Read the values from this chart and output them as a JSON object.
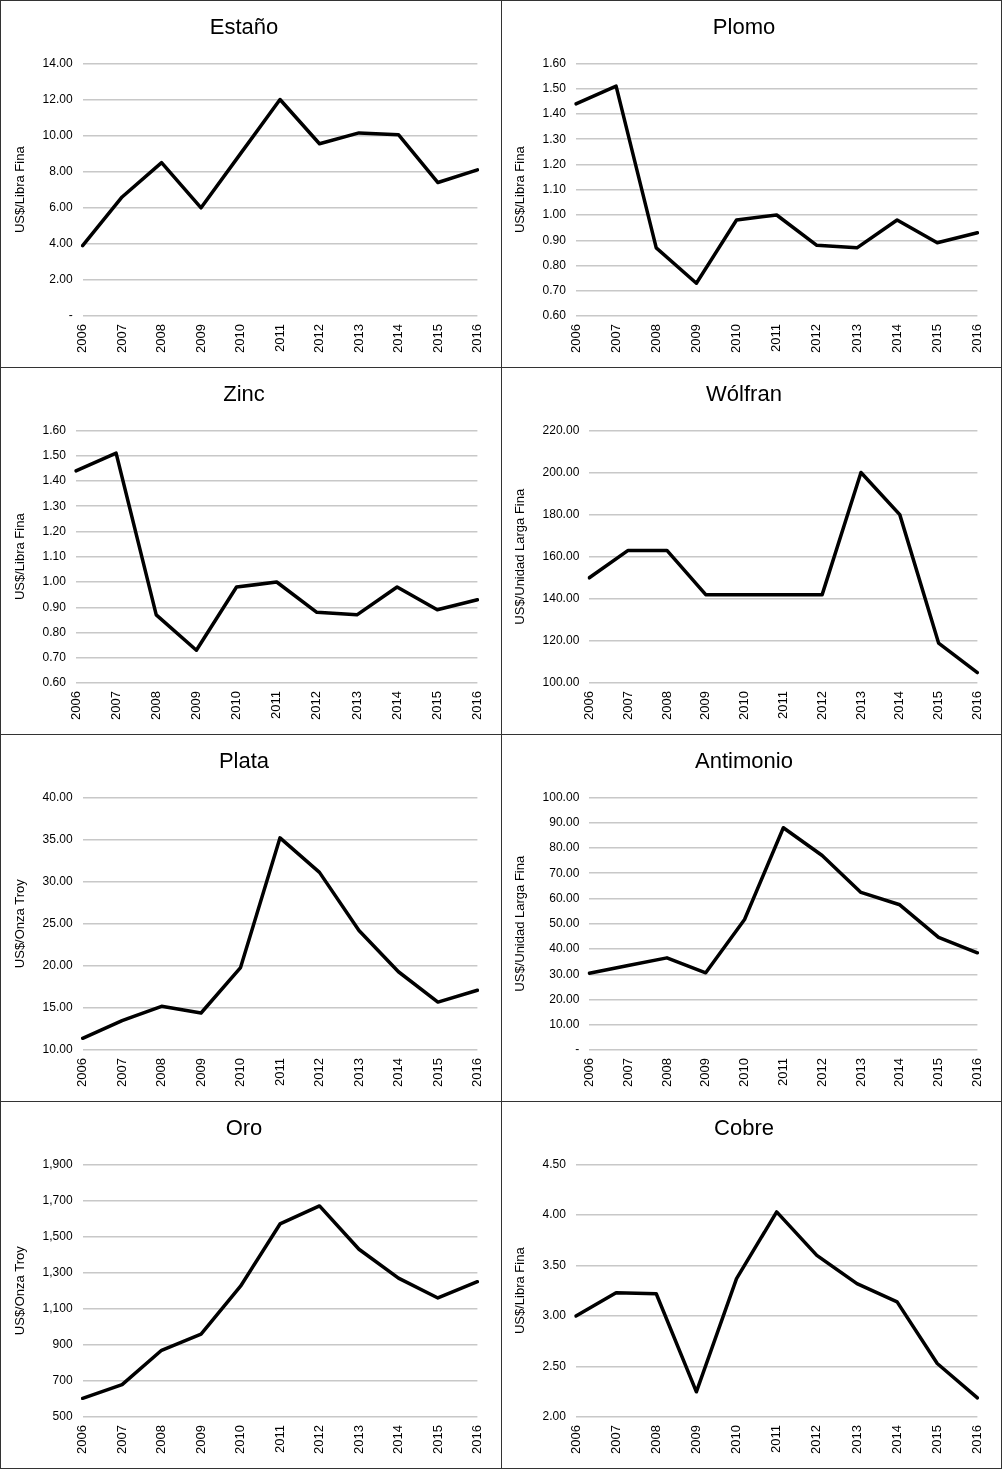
{
  "chart_data": [
    {
      "type": "line",
      "title": "Estaño",
      "ylabel": "US$/Libra Fina",
      "categories": [
        "2006",
        "2007",
        "2008",
        "2009",
        "2010",
        "2011",
        "2012",
        "2013",
        "2014",
        "2015",
        "2016"
      ],
      "values": [
        3.9,
        6.6,
        8.5,
        6.0,
        9.0,
        12.0,
        9.55,
        10.15,
        10.05,
        7.4,
        8.1
      ],
      "color": "#000000",
      "ylim": [
        0,
        14
      ],
      "yticks": [
        {
          "value": 0,
          "label": "-"
        },
        {
          "value": 2,
          "label": "2.00"
        },
        {
          "value": 4,
          "label": "4.00"
        },
        {
          "value": 6,
          "label": "6.00"
        },
        {
          "value": 8,
          "label": "8.00"
        },
        {
          "value": 10,
          "label": "10.00"
        },
        {
          "value": 12,
          "label": "12.00"
        },
        {
          "value": 14,
          "label": "14.00"
        }
      ],
      "grid": "y",
      "marker": "none",
      "line_style": "solid"
    },
    {
      "type": "line",
      "title": "Plomo",
      "ylabel": "US$/Libra Fina",
      "categories": [
        "2006",
        "2007",
        "2008",
        "2009",
        "2010",
        "2011",
        "2012",
        "2013",
        "2014",
        "2015",
        "2016"
      ],
      "values": [
        1.44,
        1.51,
        0.87,
        0.73,
        0.98,
        1.0,
        0.88,
        0.87,
        0.98,
        0.89,
        0.93
      ],
      "color": "#000000",
      "ylim": [
        0.6,
        1.6
      ],
      "yticks": [
        {
          "value": 0.6,
          "label": "0.60"
        },
        {
          "value": 0.7,
          "label": "0.70"
        },
        {
          "value": 0.8,
          "label": "0.80"
        },
        {
          "value": 0.9,
          "label": "0.90"
        },
        {
          "value": 1.0,
          "label": "1.00"
        },
        {
          "value": 1.1,
          "label": "1.10"
        },
        {
          "value": 1.2,
          "label": "1.20"
        },
        {
          "value": 1.3,
          "label": "1.30"
        },
        {
          "value": 1.4,
          "label": "1.40"
        },
        {
          "value": 1.5,
          "label": "1.50"
        },
        {
          "value": 1.6,
          "label": "1.60"
        }
      ],
      "grid": "y",
      "marker": "none",
      "line_style": "solid"
    },
    {
      "type": "line",
      "title": "Zinc",
      "ylabel": "US$/Libra Fina",
      "categories": [
        "2006",
        "2007",
        "2008",
        "2009",
        "2010",
        "2011",
        "2012",
        "2013",
        "2014",
        "2015",
        "2016"
      ],
      "values": [
        1.44,
        1.51,
        0.87,
        0.73,
        0.98,
        1.0,
        0.88,
        0.87,
        0.98,
        0.89,
        0.93
      ],
      "color": "#000000",
      "ylim": [
        0.6,
        1.6
      ],
      "yticks": [
        {
          "value": 0.6,
          "label": "0.60"
        },
        {
          "value": 0.7,
          "label": "0.70"
        },
        {
          "value": 0.8,
          "label": "0.80"
        },
        {
          "value": 0.9,
          "label": "0.90"
        },
        {
          "value": 1.0,
          "label": "1.00"
        },
        {
          "value": 1.1,
          "label": "1.10"
        },
        {
          "value": 1.2,
          "label": "1.20"
        },
        {
          "value": 1.3,
          "label": "1.30"
        },
        {
          "value": 1.4,
          "label": "1.40"
        },
        {
          "value": 1.5,
          "label": "1.50"
        },
        {
          "value": 1.6,
          "label": "1.60"
        }
      ],
      "grid": "y",
      "marker": "none",
      "line_style": "solid"
    },
    {
      "type": "line",
      "title": "Wólfran",
      "ylabel": "US$/Unidad Larga Fina",
      "categories": [
        "2006",
        "2007",
        "2008",
        "2009",
        "2010",
        "2011",
        "2012",
        "2013",
        "2014",
        "2015",
        "2016"
      ],
      "values": [
        150,
        163,
        163,
        142,
        142,
        142,
        142,
        200,
        180,
        119,
        105
      ],
      "color": "#000000",
      "ylim": [
        100,
        220
      ],
      "yticks": [
        {
          "value": 100,
          "label": "100.00"
        },
        {
          "value": 120,
          "label": "120.00"
        },
        {
          "value": 140,
          "label": "140.00"
        },
        {
          "value": 160,
          "label": "160.00"
        },
        {
          "value": 180,
          "label": "180.00"
        },
        {
          "value": 200,
          "label": "200.00"
        },
        {
          "value": 220,
          "label": "220.00"
        }
      ],
      "grid": "y",
      "marker": "none",
      "line_style": "solid"
    },
    {
      "type": "line",
      "title": "Plata",
      "ylabel": "US$/Onza Troy",
      "categories": [
        "2006",
        "2007",
        "2008",
        "2009",
        "2010",
        "2011",
        "2012",
        "2013",
        "2014",
        "2015",
        "2016"
      ],
      "values": [
        11.4,
        13.5,
        15.2,
        14.4,
        19.8,
        35.2,
        31.1,
        24.2,
        19.3,
        15.7,
        17.1
      ],
      "color": "#000000",
      "ylim": [
        10,
        40
      ],
      "yticks": [
        {
          "value": 10,
          "label": "10.00"
        },
        {
          "value": 15,
          "label": "15.00"
        },
        {
          "value": 20,
          "label": "20.00"
        },
        {
          "value": 25,
          "label": "25.00"
        },
        {
          "value": 30,
          "label": "30.00"
        },
        {
          "value": 35,
          "label": "35.00"
        },
        {
          "value": 40,
          "label": "40.00"
        }
      ],
      "grid": "y",
      "marker": "none",
      "line_style": "solid"
    },
    {
      "type": "line",
      "title": "Antimonio",
      "ylabel": "US$/Unidad Larga Fina",
      "categories": [
        "2006",
        "2007",
        "2008",
        "2009",
        "2010",
        "2011",
        "2012",
        "2013",
        "2014",
        "2015",
        "2016"
      ],
      "values": [
        30.4,
        33.5,
        36.5,
        30.6,
        51.7,
        88,
        77,
        62.4,
        57.5,
        44.6,
        38.5
      ],
      "color": "#000000",
      "ylim": [
        0,
        100
      ],
      "yticks": [
        {
          "value": 0,
          "label": "-"
        },
        {
          "value": 10,
          "label": "10.00"
        },
        {
          "value": 20,
          "label": "20.00"
        },
        {
          "value": 30,
          "label": "30.00"
        },
        {
          "value": 40,
          "label": "40.00"
        },
        {
          "value": 50,
          "label": "50.00"
        },
        {
          "value": 60,
          "label": "60.00"
        },
        {
          "value": 70,
          "label": "70.00"
        },
        {
          "value": 80,
          "label": "80.00"
        },
        {
          "value": 90,
          "label": "90.00"
        },
        {
          "value": 100,
          "label": "100.00"
        }
      ],
      "grid": "y",
      "marker": "none",
      "line_style": "solid"
    },
    {
      "type": "line",
      "title": "Oro",
      "ylabel": "US$/Onza Troy",
      "categories": [
        "2006",
        "2007",
        "2008",
        "2009",
        "2010",
        "2011",
        "2012",
        "2013",
        "2014",
        "2015",
        "2016"
      ],
      "values": [
        604,
        680,
        870,
        960,
        1225,
        1570,
        1670,
        1430,
        1270,
        1160,
        1250
      ],
      "color": "#000000",
      "ylim": [
        500,
        1900
      ],
      "yticks": [
        {
          "value": 500,
          "label": "500"
        },
        {
          "value": 700,
          "label": "700"
        },
        {
          "value": 900,
          "label": "900"
        },
        {
          "value": 1100,
          "label": "1,100"
        },
        {
          "value": 1300,
          "label": "1,300"
        },
        {
          "value": 1500,
          "label": "1,500"
        },
        {
          "value": 1700,
          "label": "1,700"
        },
        {
          "value": 1900,
          "label": "1,900"
        }
      ],
      "grid": "y",
      "marker": "none",
      "line_style": "solid"
    },
    {
      "type": "line",
      "title": "Cobre",
      "ylabel": "US$/Libra Fina",
      "categories": [
        "2006",
        "2007",
        "2008",
        "2009",
        "2010",
        "2011",
        "2012",
        "2013",
        "2014",
        "2015",
        "2016"
      ],
      "values": [
        3.0,
        3.23,
        3.22,
        2.25,
        3.37,
        4.03,
        3.6,
        3.32,
        3.14,
        2.53,
        2.19
      ],
      "color": "#000000",
      "ylim": [
        2,
        4.5
      ],
      "yticks": [
        {
          "value": 2,
          "label": "2.00"
        },
        {
          "value": 2.5,
          "label": "2.50"
        },
        {
          "value": 3,
          "label": "3.00"
        },
        {
          "value": 3.5,
          "label": "3.50"
        },
        {
          "value": 4,
          "label": "4.00"
        },
        {
          "value": 4.5,
          "label": "4.50"
        }
      ],
      "grid": "y",
      "marker": "none",
      "line_style": "solid"
    }
  ]
}
